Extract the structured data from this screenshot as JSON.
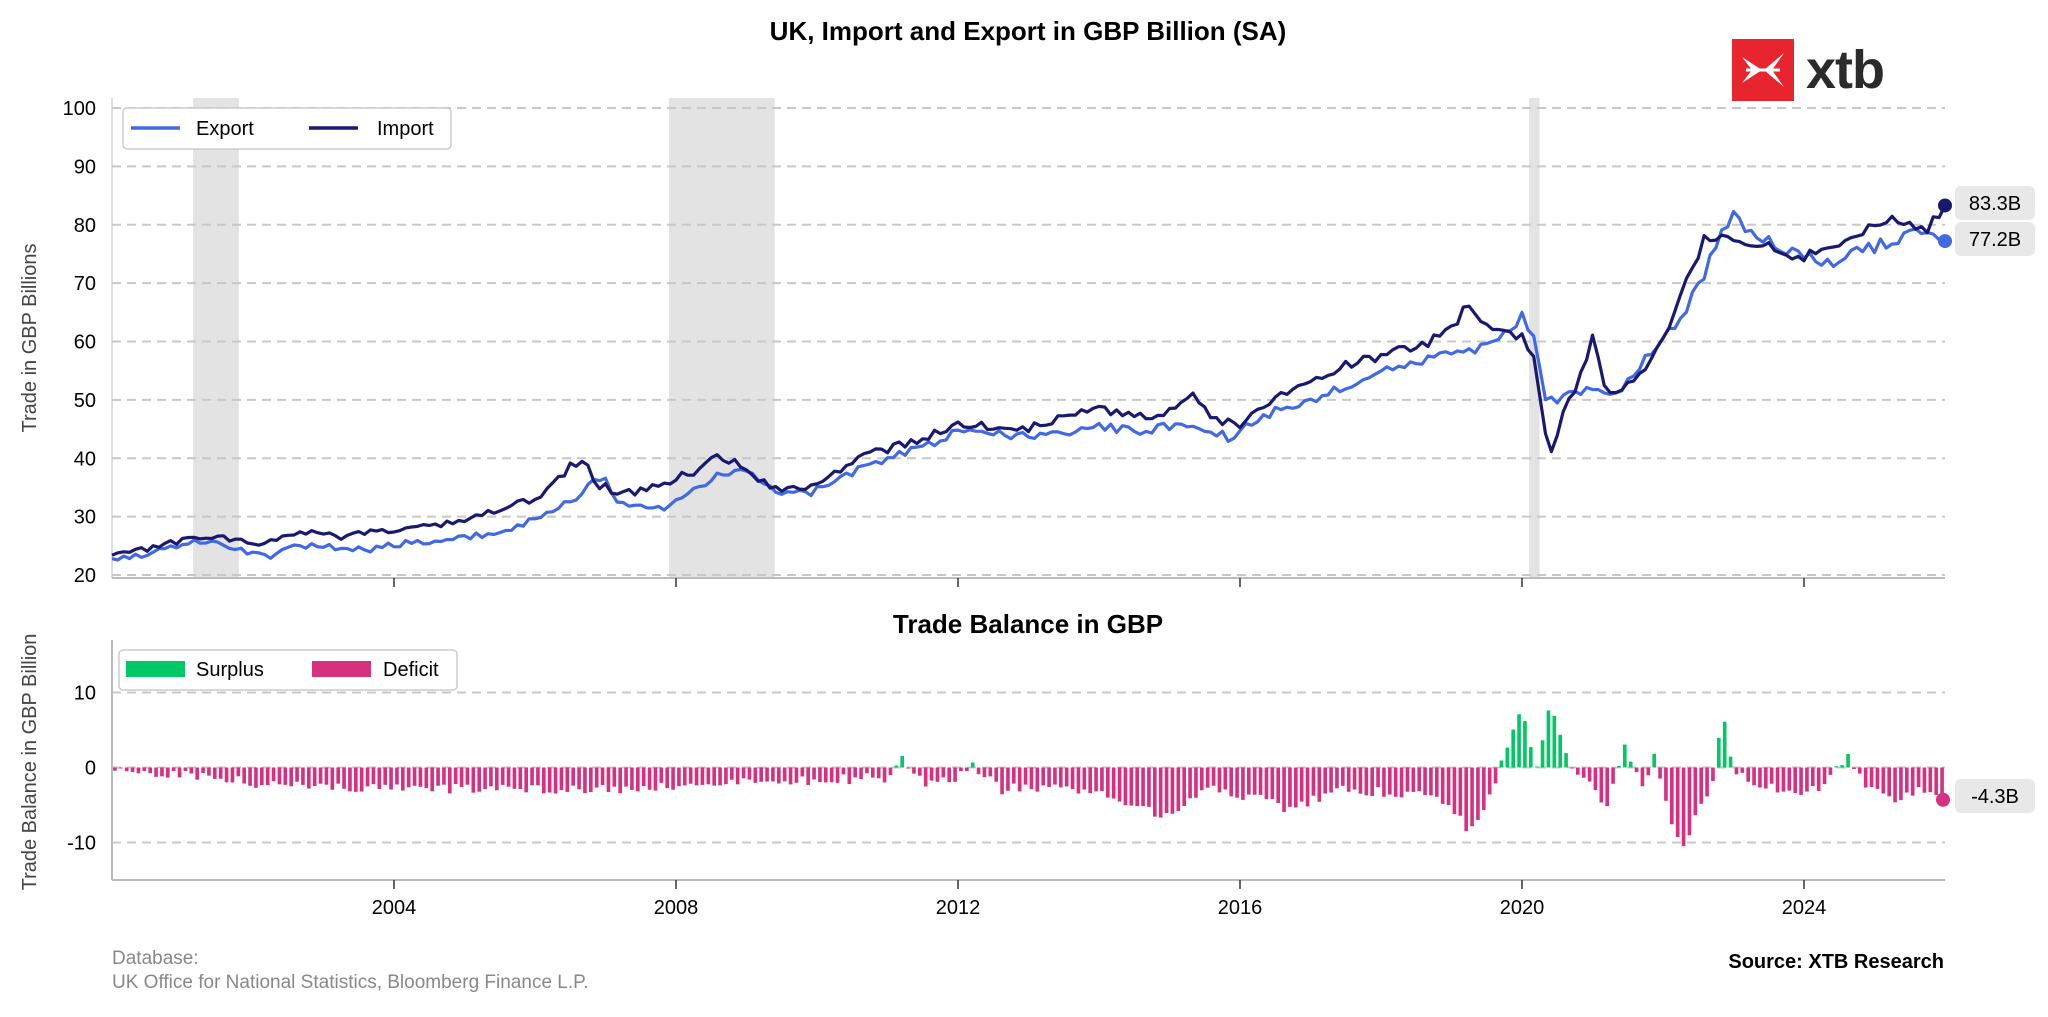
{
  "logo": {
    "text": "xtb",
    "color": "#e8252f"
  },
  "footer": {
    "database_label": "Database:",
    "database_sources": "UK Office for National Statistics, Bloomberg Finance L.P.",
    "source": "Source: XTB Research"
  },
  "colors": {
    "export": "#4169e1",
    "import": "#191970",
    "surplus": "#00c864",
    "deficit": "#d6307f",
    "recession": "#e3e3e3",
    "grid": "#c8c8c8"
  },
  "chart_data": [
    {
      "type": "line",
      "title": "UK, Import and Export in GBP Billion (SA)",
      "ylabel": "Trade in GBP Billions",
      "ylim": [
        20,
        100
      ],
      "yticks": [
        20,
        30,
        40,
        50,
        60,
        70,
        80,
        90,
        100
      ],
      "xlim": [
        2000.0,
        2026.0
      ],
      "xticks": [
        "2004",
        "2008",
        "2012",
        "2016",
        "2020",
        "2024"
      ],
      "grid": "horizontal dashed",
      "legend_position": "top-left",
      "recession_shading": [
        [
          2001.15,
          2001.8
        ],
        [
          2007.9,
          2009.4
        ],
        [
          2020.1,
          2020.25
        ]
      ],
      "end_labels": [
        "83.3B",
        "77.2B"
      ],
      "series": [
        {
          "name": "Export",
          "points": [
            [
              2000.0,
              22.8
            ],
            [
              2000.5,
              23.5
            ],
            [
              2001.0,
              25.2
            ],
            [
              2001.3,
              26.0
            ],
            [
              2001.6,
              25.2
            ],
            [
              2002.0,
              23.6
            ],
            [
              2002.3,
              22.9
            ],
            [
              2002.5,
              24.5
            ],
            [
              2002.9,
              25.3
            ],
            [
              2003.3,
              24.5
            ],
            [
              2003.6,
              24.3
            ],
            [
              2004.0,
              25.2
            ],
            [
              2004.5,
              25.8
            ],
            [
              2005.0,
              26.5
            ],
            [
              2005.5,
              27.4
            ],
            [
              2006.0,
              29.5
            ],
            [
              2006.3,
              31.5
            ],
            [
              2006.5,
              32.5
            ],
            [
              2006.7,
              34.5
            ],
            [
              2006.85,
              36.7
            ],
            [
              2007.0,
              36.5
            ],
            [
              2007.1,
              33.0
            ],
            [
              2007.2,
              32.0
            ],
            [
              2007.5,
              32.3
            ],
            [
              2007.8,
              31.3
            ],
            [
              2008.0,
              33.5
            ],
            [
              2008.3,
              34.5
            ],
            [
              2008.6,
              37.0
            ],
            [
              2008.85,
              38.3
            ],
            [
              2009.0,
              37.8
            ],
            [
              2009.3,
              35.0
            ],
            [
              2009.6,
              33.8
            ],
            [
              2009.9,
              34.0
            ],
            [
              2010.3,
              36.0
            ],
            [
              2010.6,
              38.5
            ],
            [
              2011.0,
              40.0
            ],
            [
              2011.4,
              41.5
            ],
            [
              2011.8,
              43.5
            ],
            [
              2012.0,
              44.5
            ],
            [
              2012.5,
              44.0
            ],
            [
              2013.0,
              43.8
            ],
            [
              2013.5,
              44.5
            ],
            [
              2014.0,
              45.5
            ],
            [
              2014.5,
              44.5
            ],
            [
              2015.0,
              45.5
            ],
            [
              2015.5,
              45.0
            ],
            [
              2015.85,
              43.5
            ],
            [
              2016.0,
              45.0
            ],
            [
              2016.5,
              48.0
            ],
            [
              2017.0,
              50.0
            ],
            [
              2017.5,
              52.5
            ],
            [
              2018.0,
              55.0
            ],
            [
              2018.5,
              56.5
            ],
            [
              2019.0,
              58.0
            ],
            [
              2019.5,
              59.0
            ],
            [
              2019.8,
              61.5
            ],
            [
              2020.0,
              64.5
            ],
            [
              2020.2,
              60.0
            ],
            [
              2020.35,
              49.5
            ],
            [
              2020.5,
              50.0
            ],
            [
              2020.75,
              51.0
            ],
            [
              2021.0,
              52.5
            ],
            [
              2021.3,
              50.0
            ],
            [
              2021.6,
              55.0
            ],
            [
              2022.0,
              60.0
            ],
            [
              2022.3,
              65.0
            ],
            [
              2022.6,
              72.0
            ],
            [
              2022.9,
              80.0
            ],
            [
              2023.0,
              81.5
            ],
            [
              2023.3,
              78.0
            ],
            [
              2023.6,
              76.5
            ],
            [
              2024.0,
              74.5
            ],
            [
              2024.4,
              73.0
            ],
            [
              2024.8,
              75.5
            ],
            [
              2025.2,
              77.0
            ],
            [
              2025.5,
              78.0
            ],
            [
              2025.75,
              79.0
            ],
            [
              2026.0,
              77.2
            ]
          ]
        },
        {
          "name": "Import",
          "points": [
            [
              2000.0,
              23.4
            ],
            [
              2000.5,
              24.5
            ],
            [
              2001.0,
              26.0
            ],
            [
              2001.3,
              26.7
            ],
            [
              2001.6,
              26.5
            ],
            [
              2002.0,
              25.3
            ],
            [
              2002.4,
              26.5
            ],
            [
              2002.8,
              27.3
            ],
            [
              2003.2,
              26.5
            ],
            [
              2003.6,
              27.2
            ],
            [
              2004.0,
              27.8
            ],
            [
              2004.5,
              28.5
            ],
            [
              2005.0,
              29.5
            ],
            [
              2005.5,
              31.5
            ],
            [
              2006.0,
              33.0
            ],
            [
              2006.3,
              36.0
            ],
            [
              2006.5,
              38.8
            ],
            [
              2006.7,
              39.2
            ],
            [
              2006.9,
              35.5
            ],
            [
              2007.1,
              34.5
            ],
            [
              2007.4,
              34.0
            ],
            [
              2007.7,
              35.5
            ],
            [
              2008.0,
              36.5
            ],
            [
              2008.3,
              38.0
            ],
            [
              2008.5,
              40.5
            ],
            [
              2008.8,
              39.5
            ],
            [
              2009.0,
              37.5
            ],
            [
              2009.3,
              35.5
            ],
            [
              2009.6,
              34.5
            ],
            [
              2009.9,
              35.5
            ],
            [
              2010.3,
              38.0
            ],
            [
              2010.6,
              40.5
            ],
            [
              2011.0,
              41.5
            ],
            [
              2011.4,
              43.0
            ],
            [
              2011.8,
              45.0
            ],
            [
              2012.0,
              45.5
            ],
            [
              2012.5,
              45.5
            ],
            [
              2013.0,
              45.0
            ],
            [
              2013.5,
              47.0
            ],
            [
              2014.0,
              48.5
            ],
            [
              2014.5,
              47.0
            ],
            [
              2015.0,
              48.0
            ],
            [
              2015.3,
              51.5
            ],
            [
              2015.6,
              47.0
            ],
            [
              2016.0,
              45.5
            ],
            [
              2016.5,
              50.0
            ],
            [
              2017.0,
              53.0
            ],
            [
              2017.5,
              56.0
            ],
            [
              2018.0,
              57.5
            ],
            [
              2018.5,
              59.0
            ],
            [
              2019.0,
              62.0
            ],
            [
              2019.2,
              66.5
            ],
            [
              2019.5,
              63.0
            ],
            [
              2019.8,
              62.0
            ],
            [
              2020.0,
              60.5
            ],
            [
              2020.2,
              56.5
            ],
            [
              2020.3,
              45.0
            ],
            [
              2020.4,
              40.5
            ],
            [
              2020.6,
              48.0
            ],
            [
              2020.9,
              56.0
            ],
            [
              2021.0,
              60.5
            ],
            [
              2021.2,
              51.5
            ],
            [
              2021.6,
              53.0
            ],
            [
              2022.0,
              60.0
            ],
            [
              2022.3,
              70.0
            ],
            [
              2022.6,
              77.5
            ],
            [
              2022.9,
              79.0
            ],
            [
              2023.2,
              76.5
            ],
            [
              2023.5,
              76.5
            ],
            [
              2023.8,
              74.5
            ],
            [
              2024.0,
              74.0
            ],
            [
              2024.4,
              77.0
            ],
            [
              2024.8,
              78.5
            ],
            [
              2025.2,
              80.5
            ],
            [
              2025.5,
              80.5
            ],
            [
              2025.75,
              79.5
            ],
            [
              2026.0,
              83.3
            ]
          ]
        }
      ]
    },
    {
      "type": "bar",
      "title": "Trade Balance in GBP",
      "ylabel": "Trade Balance in GBP Billion",
      "ylim": [
        -15,
        17
      ],
      "yticks": [
        -10,
        0,
        10
      ],
      "xticks": [
        "2004",
        "2008",
        "2012",
        "2016",
        "2020",
        "2024"
      ],
      "grid": "horizontal dashed",
      "legend_position": "top-left",
      "legend": [
        "Surplus",
        "Deficit"
      ],
      "end_label": "-4.3B",
      "balance_profile": [
        [
          2000.0,
          -0.8
        ],
        [
          2001.0,
          -1.0
        ],
        [
          2002.0,
          -2.0
        ],
        [
          2003.0,
          -2.5
        ],
        [
          2004.0,
          -2.6
        ],
        [
          2005.0,
          -2.8
        ],
        [
          2006.0,
          -3.0
        ],
        [
          2007.0,
          -2.8
        ],
        [
          2008.0,
          -2.5
        ],
        [
          2009.0,
          -2.0
        ],
        [
          2010.0,
          -1.8
        ],
        [
          2011.0,
          -1.3
        ],
        [
          2011.2,
          1.3
        ],
        [
          2011.5,
          -2.0
        ],
        [
          2012.0,
          -1.2
        ],
        [
          2012.2,
          0.5
        ],
        [
          2012.6,
          -3.0
        ],
        [
          2013.0,
          -2.5
        ],
        [
          2014.0,
          -3.0
        ],
        [
          2014.9,
          -6.5
        ],
        [
          2015.5,
          -3.0
        ],
        [
          2016.0,
          -3.5
        ],
        [
          2016.7,
          -5.5
        ],
        [
          2017.5,
          -3.0
        ],
        [
          2018.5,
          -3.5
        ],
        [
          2019.0,
          -5.0
        ],
        [
          2019.25,
          -8.8
        ],
        [
          2019.6,
          -2.5
        ],
        [
          2020.0,
          7.8
        ],
        [
          2020.2,
          -0.5
        ],
        [
          2020.4,
          9.4
        ],
        [
          2020.6,
          2.0
        ],
        [
          2020.9,
          -2.0
        ],
        [
          2021.0,
          -2.8
        ],
        [
          2021.2,
          -5.5
        ],
        [
          2021.45,
          3.5
        ],
        [
          2021.7,
          -2.5
        ],
        [
          2021.9,
          2.0
        ],
        [
          2022.0,
          -4.0
        ],
        [
          2022.25,
          -10.7
        ],
        [
          2022.5,
          -6.0
        ],
        [
          2022.7,
          -2.0
        ],
        [
          2022.85,
          7.3
        ],
        [
          2023.0,
          -1.0
        ],
        [
          2023.5,
          -2.5
        ],
        [
          2023.9,
          -3.5
        ],
        [
          2024.3,
          -2.5
        ],
        [
          2024.6,
          1.5
        ],
        [
          2024.9,
          -3.0
        ],
        [
          2025.3,
          -4.5
        ],
        [
          2025.7,
          -3.0
        ],
        [
          2025.95,
          -4.3
        ]
      ]
    }
  ]
}
